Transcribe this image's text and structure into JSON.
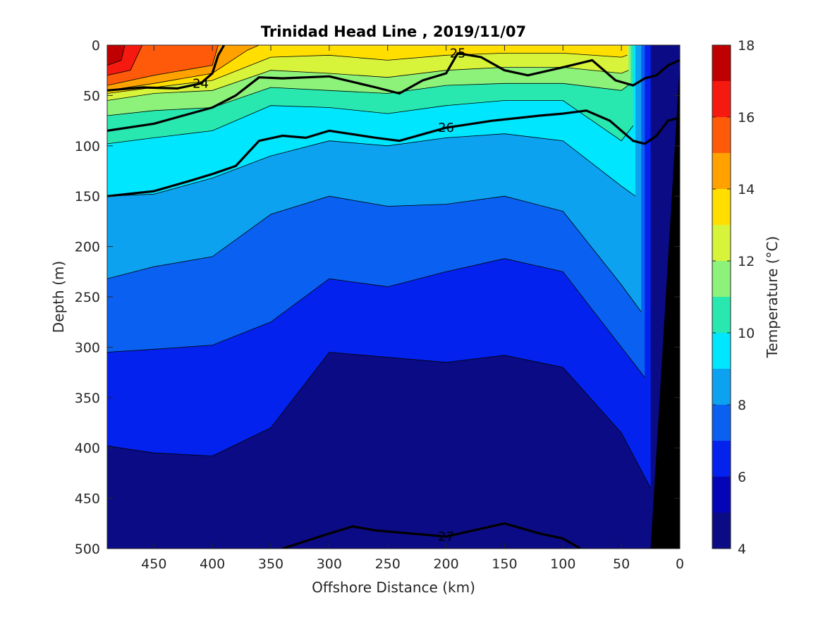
{
  "chart_data": {
    "type": "contour",
    "title": "Trinidad Head Line , 2019/11/07",
    "xlabel": "Offshore Distance (km)",
    "ylabel": "Depth (m)",
    "colorbar_label": "Temperature (°C)",
    "xlim": [
      490,
      0
    ],
    "ylim": [
      0,
      500
    ],
    "x_reversed": true,
    "y_reversed": true,
    "x_ticks": [
      450,
      400,
      350,
      300,
      250,
      200,
      150,
      100,
      50,
      0
    ],
    "y_ticks": [
      0,
      50,
      100,
      150,
      200,
      250,
      300,
      350,
      400,
      450,
      500
    ],
    "colorbar": {
      "min": 4,
      "max": 18,
      "ticks": [
        4,
        6,
        8,
        10,
        12,
        14,
        16,
        18
      ],
      "levels": [
        {
          "from": 4,
          "to": 5,
          "color": "#0b0b85"
        },
        {
          "from": 5,
          "to": 6,
          "color": "#0505b8"
        },
        {
          "from": 6,
          "to": 7,
          "color": "#0422ee"
        },
        {
          "from": 7,
          "to": 8,
          "color": "#0a60f0"
        },
        {
          "from": 8,
          "to": 9,
          "color": "#0da2f0"
        },
        {
          "from": 9,
          "to": 10,
          "color": "#00e6ff"
        },
        {
          "from": 10,
          "to": 11,
          "color": "#28e8b0"
        },
        {
          "from": 11,
          "to": 12,
          "color": "#8cf27a"
        },
        {
          "from": 12,
          "to": 13,
          "color": "#d8f43a"
        },
        {
          "from": 13,
          "to": 14,
          "color": "#ffde00"
        },
        {
          "from": 14,
          "to": 15,
          "color": "#ffa200"
        },
        {
          "from": 15,
          "to": 16,
          "color": "#ff5a0a"
        },
        {
          "from": 16,
          "to": 17,
          "color": "#f5190f"
        },
        {
          "from": 17,
          "to": 18,
          "color": "#c00000"
        }
      ]
    },
    "isotherms": [
      {
        "temp": 6,
        "x": [
          490,
          450,
          400,
          350,
          300,
          250,
          200,
          150,
          100,
          50,
          25
        ],
        "depth": [
          398,
          405,
          408,
          380,
          305,
          310,
          315,
          308,
          320,
          385,
          440
        ]
      },
      {
        "temp": 7,
        "x": [
          490,
          450,
          400,
          350,
          300,
          250,
          200,
          150,
          100,
          50,
          30
        ],
        "depth": [
          305,
          302,
          298,
          275,
          232,
          240,
          225,
          212,
          225,
          300,
          330
        ]
      },
      {
        "temp": 8,
        "x": [
          490,
          450,
          400,
          350,
          300,
          250,
          200,
          150,
          100,
          50,
          33
        ],
        "depth": [
          232,
          220,
          210,
          168,
          150,
          160,
          158,
          150,
          165,
          238,
          265
        ]
      },
      {
        "temp": 9,
        "x": [
          490,
          450,
          400,
          350,
          300,
          250,
          200,
          150,
          100,
          50,
          38
        ],
        "depth": [
          150,
          148,
          132,
          110,
          95,
          100,
          92,
          88,
          95,
          140,
          150
        ]
      },
      {
        "temp": 10,
        "x": [
          490,
          450,
          400,
          350,
          300,
          250,
          200,
          150,
          100,
          50,
          40
        ],
        "depth": [
          98,
          92,
          85,
          60,
          62,
          68,
          60,
          55,
          55,
          95,
          80
        ]
      },
      {
        "temp": 11,
        "x": [
          490,
          450,
          400,
          350,
          300,
          250,
          200,
          150,
          100,
          50,
          42
        ],
        "depth": [
          70,
          65,
          62,
          42,
          45,
          48,
          40,
          38,
          38,
          45,
          38
        ]
      },
      {
        "temp": 12,
        "x": [
          490,
          450,
          400,
          350,
          300,
          250,
          200,
          150,
          100,
          50,
          44
        ],
        "depth": [
          55,
          48,
          45,
          25,
          28,
          32,
          25,
          22,
          22,
          28,
          25
        ]
      },
      {
        "temp": 13,
        "x": [
          490,
          450,
          400,
          350,
          300,
          250,
          200,
          150,
          100,
          50,
          45
        ],
        "depth": [
          48,
          42,
          35,
          12,
          10,
          15,
          10,
          8,
          8,
          12,
          10
        ]
      },
      {
        "temp": 14,
        "x": [
          490,
          450,
          400,
          370,
          360
        ],
        "depth": [
          45,
          38,
          28,
          5,
          0
        ]
      },
      {
        "temp": 15,
        "x": [
          490,
          450,
          400,
          395
        ],
        "depth": [
          40,
          30,
          20,
          0
        ]
      },
      {
        "temp": 16,
        "x": [
          490,
          470,
          460
        ],
        "depth": [
          30,
          25,
          0
        ]
      },
      {
        "temp": 17,
        "x": [
          490,
          478,
          475
        ],
        "depth": [
          20,
          15,
          0
        ]
      }
    ],
    "isopycnals": [
      {
        "label": "24",
        "x": [
          490,
          460,
          430,
          410,
          400,
          395,
          390
        ],
        "depth": [
          45,
          42,
          43,
          38,
          28,
          10,
          0
        ]
      },
      {
        "label": "25",
        "x": [
          490,
          450,
          400,
          380,
          360,
          340,
          300,
          260,
          240,
          220,
          200,
          190,
          170,
          150,
          130,
          100,
          75,
          55,
          40,
          30,
          20,
          10,
          0
        ],
        "depth": [
          85,
          78,
          62,
          50,
          32,
          33,
          31,
          42,
          48,
          35,
          28,
          8,
          12,
          25,
          30,
          22,
          15,
          35,
          40,
          33,
          30,
          20,
          15
        ]
      },
      {
        "label": "26",
        "x": [
          490,
          450,
          420,
          400,
          380,
          360,
          340,
          320,
          300,
          260,
          240,
          200,
          160,
          120,
          100,
          80,
          60,
          40,
          30,
          20,
          10,
          0
        ],
        "depth": [
          150,
          145,
          135,
          128,
          120,
          95,
          90,
          92,
          85,
          92,
          95,
          82,
          75,
          70,
          68,
          65,
          75,
          95,
          98,
          90,
          75,
          72
        ]
      },
      {
        "label": "27",
        "x": [
          340,
          300,
          280,
          260,
          240,
          200,
          150,
          120,
          100,
          85
        ],
        "depth": [
          500,
          485,
          478,
          482,
          484,
          488,
          475,
          485,
          490,
          500
        ]
      }
    ],
    "bathymetry": {
      "x": [
        25,
        0
      ],
      "depth": [
        500,
        18
      ],
      "color": "#000000"
    }
  }
}
